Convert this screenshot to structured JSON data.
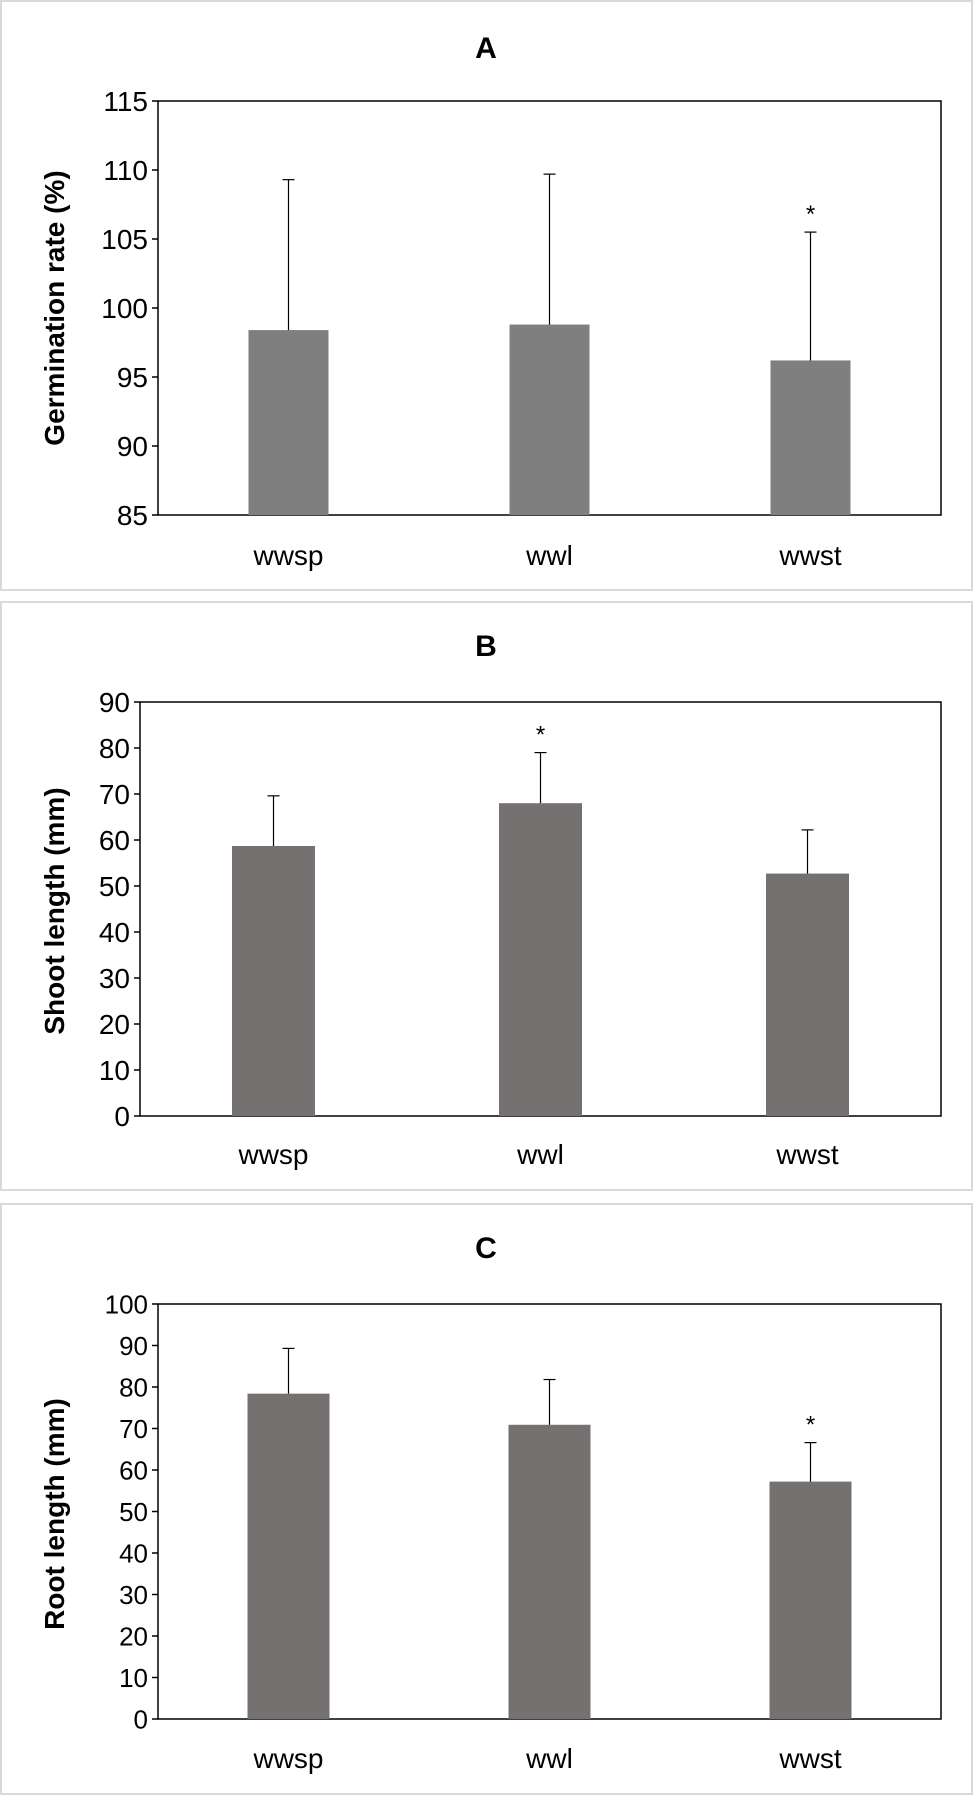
{
  "colors": {
    "panel_border": "#d9d9d9",
    "axis": "#000000",
    "bar_a": "#7f7f7f",
    "bar_bc": "#757171"
  },
  "chart_data": [
    {
      "type": "bar",
      "title": "A",
      "ylabel": "Germination rate (%)",
      "xlabel": "",
      "categories": [
        "wwsp",
        "wwl",
        "wwst"
      ],
      "values": [
        98.4,
        98.8,
        96.2
      ],
      "error_plus": [
        10.9,
        10.9,
        9.3
      ],
      "significance": [
        "",
        "",
        "*"
      ],
      "ylim": [
        85,
        115
      ],
      "yticks": [
        85,
        90,
        95,
        100,
        105,
        110,
        115
      ],
      "grid": false,
      "legend": "none"
    },
    {
      "type": "bar",
      "title": "B",
      "ylabel": "Shoot length (mm)",
      "xlabel": "",
      "categories": [
        "wwsp",
        "wwl",
        "wwst"
      ],
      "values": [
        58.7,
        68.0,
        52.7
      ],
      "error_plus": [
        10.9,
        11.0,
        9.5
      ],
      "significance": [
        "",
        "*",
        ""
      ],
      "ylim": [
        0,
        90
      ],
      "yticks": [
        0,
        10,
        20,
        30,
        40,
        50,
        60,
        70,
        80,
        90
      ],
      "grid": false,
      "legend": "none"
    },
    {
      "type": "bar",
      "title": "C",
      "ylabel": "Root length (mm)",
      "xlabel": "",
      "categories": [
        "wwsp",
        "wwl",
        "wwst"
      ],
      "values": [
        78.4,
        70.9,
        57.2
      ],
      "error_plus": [
        10.9,
        10.9,
        9.4
      ],
      "significance": [
        "",
        "",
        "*"
      ],
      "ylim": [
        0,
        100
      ],
      "yticks": [
        0,
        10,
        20,
        30,
        40,
        50,
        60,
        70,
        80,
        90,
        100
      ],
      "grid": false,
      "legend": "none"
    }
  ]
}
